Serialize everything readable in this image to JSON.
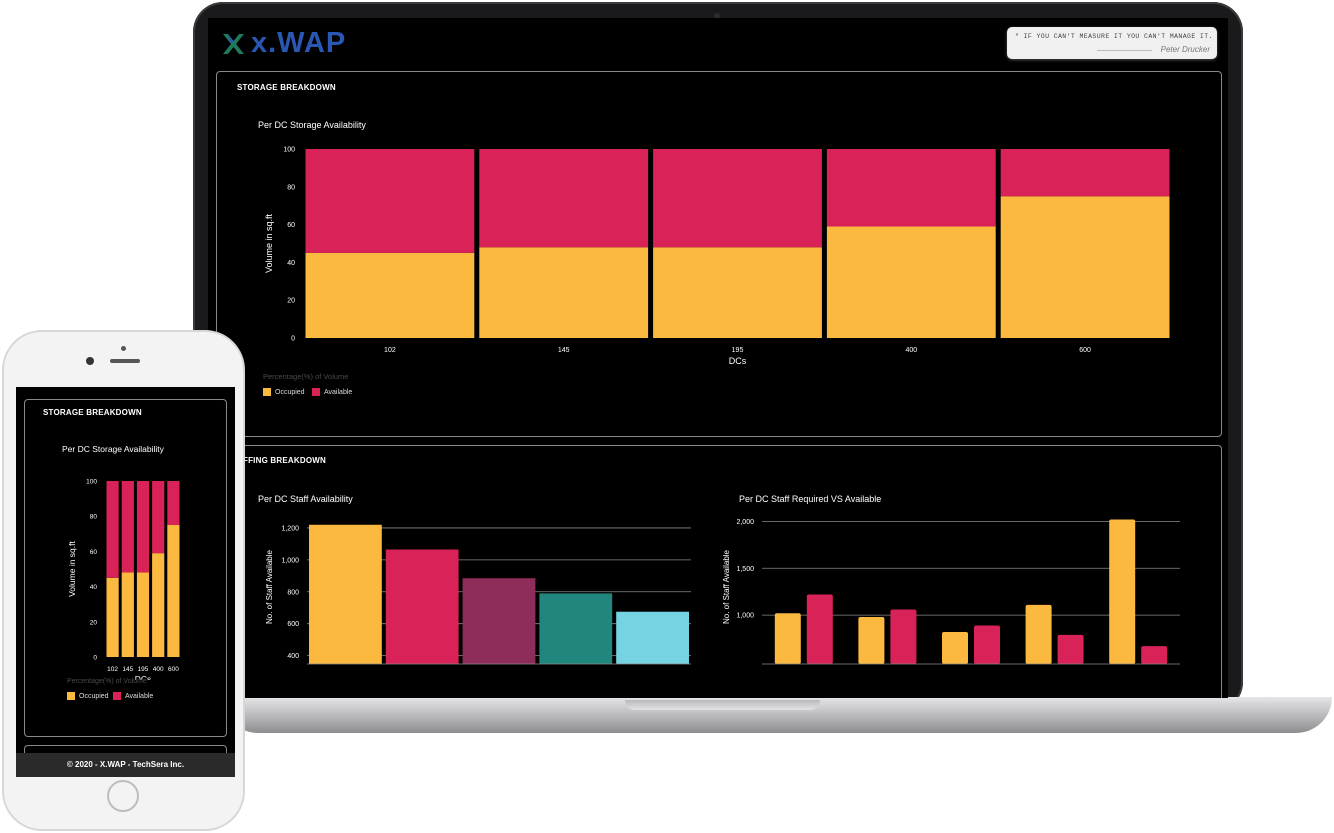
{
  "colors": {
    "occupied": "#fbb940",
    "available": "#d92358",
    "plum": "#8e2c5a",
    "teal": "#21867e",
    "cyan": "#76d4e2",
    "brand": "#2a57b4",
    "logo_mark": "#1f7a5a"
  },
  "header": {
    "logo_text": "x.WAP",
    "logo_icon": "x-logo-icon",
    "quote": "\" IF YOU CAN'T MEASURE IT YOU CAN'T MANAGE IT.",
    "quote_author": "Peter Drucker"
  },
  "storage": {
    "section_title": "STORAGE BREAKDOWN",
    "legend_title": "Percentage(%) of Volume"
  },
  "staffing": {
    "section_title": "STAFFING BREAKDOWN"
  },
  "footer": {
    "text": "© 2020 - X.WAP - TechSera Inc."
  },
  "chart_data": [
    {
      "id": "storage",
      "type": "bar",
      "stacked": true,
      "title": "Per DC Storage Availability",
      "xlabel": "DCs",
      "ylabel": "Volume in sq.ft",
      "categories": [
        "102",
        "145",
        "195",
        "400",
        "600"
      ],
      "series": [
        {
          "name": "Occupied",
          "values": [
            45,
            48,
            48,
            59,
            75
          ]
        },
        {
          "name": "Available",
          "values": [
            55,
            52,
            52,
            41,
            25
          ]
        }
      ],
      "ylim": [
        0,
        100
      ],
      "yticks": [
        "0",
        "20",
        "40",
        "60",
        "80",
        "100"
      ],
      "grid": false,
      "legend": "bottom-left"
    },
    {
      "id": "staff",
      "type": "bar",
      "title": "Per DC Staff Availability",
      "ylabel": "No. of Staff Available",
      "values": [
        1220,
        1065,
        885,
        790,
        675
      ],
      "ylim": [
        360,
        1300
      ],
      "yticks": [
        "400",
        "600",
        "800",
        "1,000",
        "1,200"
      ],
      "grid": true
    },
    {
      "id": "required",
      "type": "bar",
      "title": "Per DC Staff Required VS Available",
      "ylabel": "No. of Staff Available",
      "series": [
        {
          "values": [
            1020,
            980,
            820,
            1110,
            2020
          ]
        },
        {
          "values": [
            1220,
            1060,
            890,
            790,
            670
          ]
        }
      ],
      "ylim": [
        500,
        2100
      ],
      "yticks": [
        "1,000",
        "1,500",
        "2,000"
      ],
      "grid": true
    }
  ]
}
